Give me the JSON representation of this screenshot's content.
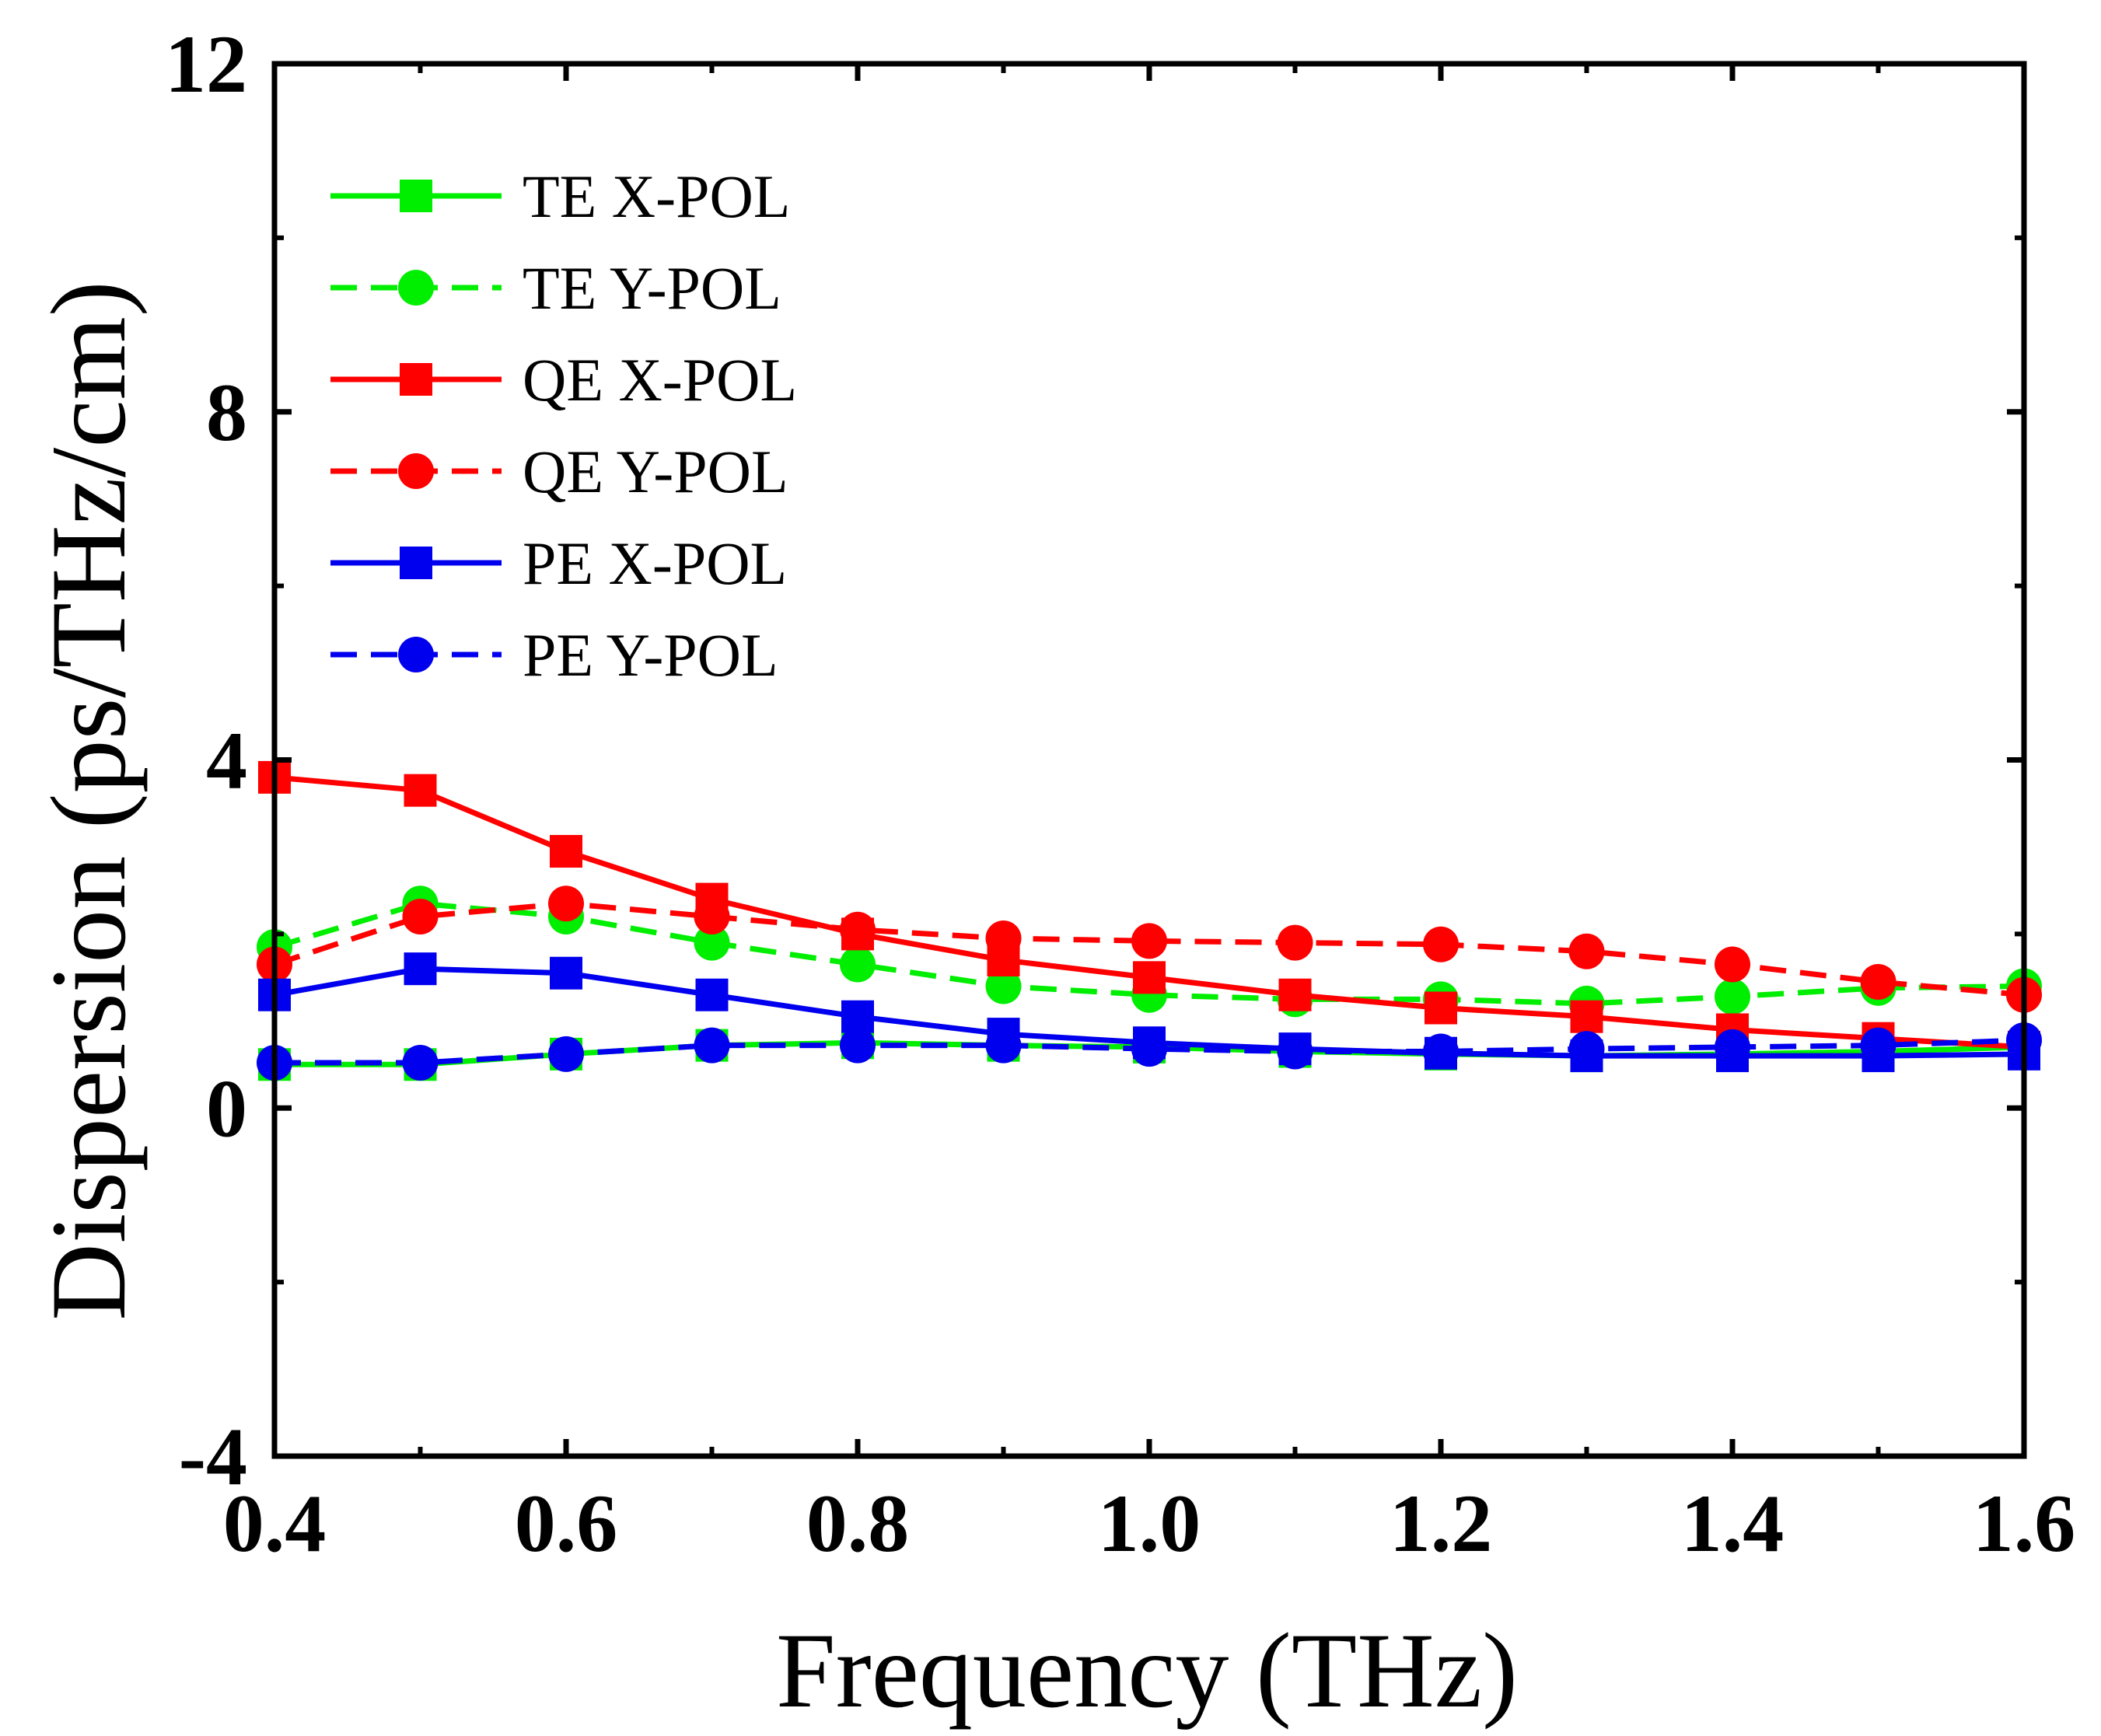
{
  "chart_data": {
    "type": "line",
    "title": "",
    "xlabel": "Frequency (THz)",
    "ylabel": "Dispersion (ps/THz/cm)",
    "xlim": [
      0.4,
      1.6
    ],
    "ylim": [
      -4,
      12
    ],
    "x_ticks": [
      0.4,
      0.6,
      0.8,
      1.0,
      1.2,
      1.4,
      1.6
    ],
    "x_tick_labels": [
      "0.4",
      "0.6",
      "0.8",
      "1.0",
      "1.2",
      "1.4",
      "1.6"
    ],
    "y_ticks": [
      -4,
      0,
      4,
      8,
      12
    ],
    "y_tick_labels": [
      "-4",
      "0",
      "4",
      "8",
      "12"
    ],
    "grid": false,
    "legend_position": "top-left",
    "x": [
      0.4,
      0.5,
      0.6,
      0.7,
      0.8,
      0.9,
      1.0,
      1.1,
      1.2,
      1.3,
      1.4,
      1.5,
      1.6
    ],
    "series": [
      {
        "name": "TE X-POL",
        "color": "#00ee00",
        "marker": "square",
        "line": "solid",
        "values": [
          0.5,
          0.5,
          0.62,
          0.72,
          0.75,
          0.72,
          0.7,
          0.65,
          0.62,
          0.6,
          0.62,
          0.65,
          0.7
        ]
      },
      {
        "name": "TE Y-POL",
        "color": "#00ee00",
        "marker": "circle",
        "line": "dashed",
        "values": [
          1.85,
          2.35,
          2.2,
          1.9,
          1.65,
          1.4,
          1.3,
          1.25,
          1.25,
          1.2,
          1.28,
          1.38,
          1.4
        ]
      },
      {
        "name": "QE X-POL",
        "color": "#ff0000",
        "marker": "square",
        "line": "solid",
        "values": [
          3.8,
          3.65,
          2.95,
          2.4,
          2.0,
          1.7,
          1.5,
          1.3,
          1.15,
          1.05,
          0.9,
          0.8,
          0.7
        ]
      },
      {
        "name": "QE Y-POL",
        "color": "#ff0000",
        "marker": "circle",
        "line": "dashed",
        "values": [
          1.65,
          2.2,
          2.35,
          2.2,
          2.05,
          1.95,
          1.92,
          1.9,
          1.88,
          1.8,
          1.65,
          1.45,
          1.3
        ]
      },
      {
        "name": "PE X-POL",
        "color": "#0000ee",
        "marker": "square",
        "line": "solid",
        "values": [
          1.3,
          1.6,
          1.55,
          1.3,
          1.05,
          0.85,
          0.75,
          0.68,
          0.63,
          0.6,
          0.6,
          0.6,
          0.62
        ]
      },
      {
        "name": "PE Y-POL",
        "color": "#0000ee",
        "marker": "circle",
        "line": "dashed",
        "values": [
          0.52,
          0.52,
          0.62,
          0.72,
          0.72,
          0.72,
          0.68,
          0.65,
          0.65,
          0.68,
          0.7,
          0.72,
          0.78
        ]
      }
    ]
  }
}
